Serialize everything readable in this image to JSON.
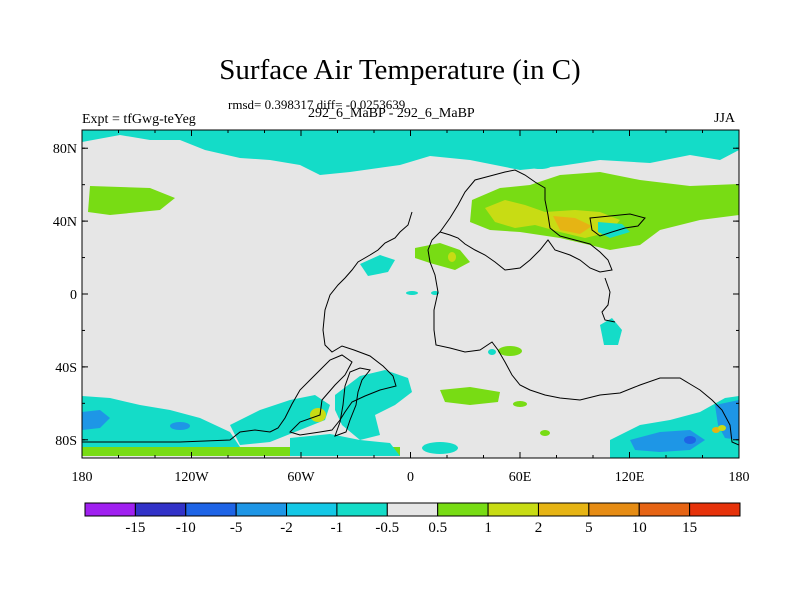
{
  "title": "Surface Air Temperature (in C)",
  "stats": "rmsd= 0.398317 diff= -0.0253639",
  "experiment": "Expt = tfGwg-teYeg",
  "case_label": "292_6_MaBP - 292_6_MaBP",
  "season": "JJA",
  "map": {
    "lon_ticks": [
      "180",
      "120W",
      "60W",
      "0",
      "60E",
      "120E",
      "180"
    ],
    "lat_ticks": [
      "80N",
      "40N",
      "0",
      "40S",
      "80S"
    ],
    "background_color": "#e6e6e6"
  },
  "colorbar": {
    "colors": [
      "#a020f0",
      "#3232c8",
      "#1e64e6",
      "#1e96e6",
      "#14c8e6",
      "#14dcc8",
      "#e6e6e6",
      "#78dc14",
      "#c8dc14",
      "#e6b414",
      "#e68c14",
      "#e66414",
      "#e6320a"
    ],
    "labels": [
      "-15",
      "-10",
      "-5",
      "-2",
      "-1",
      "-0.5",
      "0.5",
      "1",
      "2",
      "5",
      "10",
      "15"
    ]
  }
}
